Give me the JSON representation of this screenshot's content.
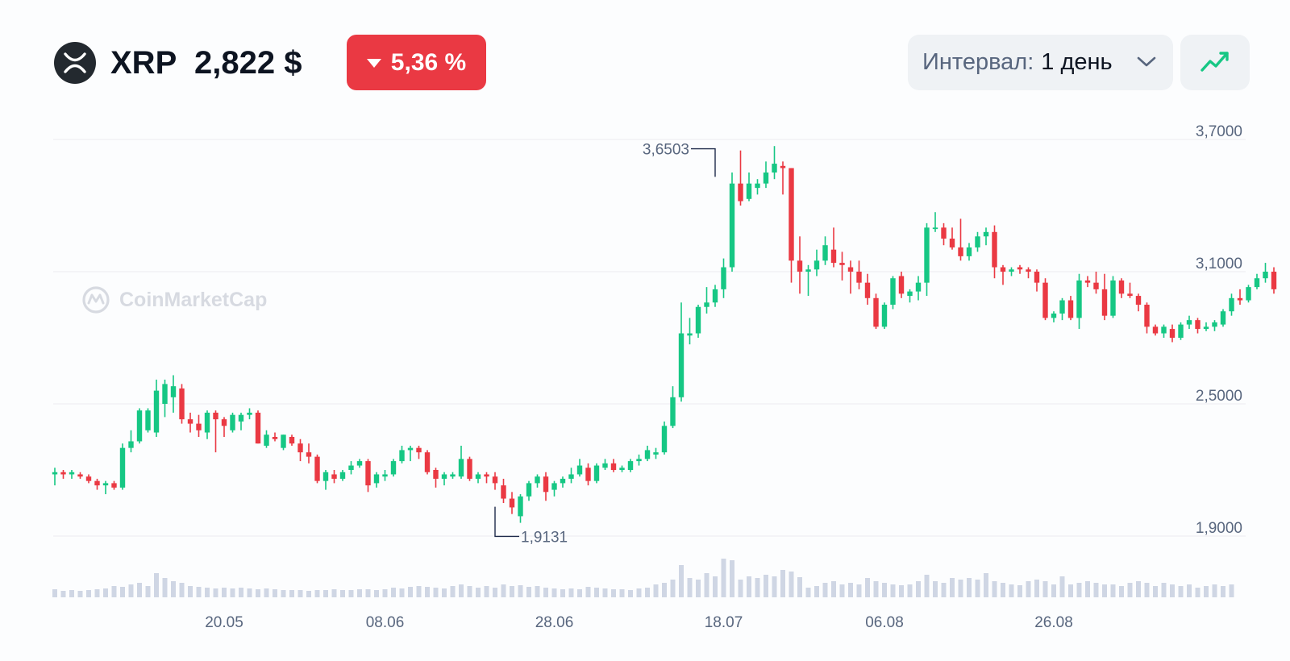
{
  "header": {
    "symbol": "XRP",
    "price": "2,822 $",
    "change": "5,36 %",
    "change_direction": "down",
    "coin_icon": "xrp-logo-icon",
    "interval_label": "Интервал:",
    "interval_value": "1 день",
    "chart_type_icon": "line-chart-icon"
  },
  "watermark": {
    "text": "CoinMarketCap"
  },
  "colors": {
    "up": "#16c784",
    "down": "#ea3943",
    "volume": "#cfd6e4",
    "grid": "#eef0f3",
    "axis_text": "#58667e",
    "badge_bg": "#ea3943",
    "button_bg": "#eff2f5"
  },
  "chart_data": {
    "type": "candlestick",
    "ylim": [
      1.85,
      3.75
    ],
    "y_ticks": [
      {
        "value": 3.7,
        "label": "3,7000"
      },
      {
        "value": 3.1,
        "label": "3,1000"
      },
      {
        "value": 2.5,
        "label": "2,5000"
      },
      {
        "value": 1.9,
        "label": "1,9000"
      }
    ],
    "x_ticks": [
      {
        "index": 20,
        "label": "20.05"
      },
      {
        "index": 39,
        "label": "08.06"
      },
      {
        "index": 59,
        "label": "28.06"
      },
      {
        "index": 79,
        "label": "18.07"
      },
      {
        "index": 98,
        "label": "06.08"
      },
      {
        "index": 118,
        "label": "26.08"
      }
    ],
    "annotations": [
      {
        "label": "3,6503",
        "value": 3.6503,
        "index": 78,
        "kind": "high"
      },
      {
        "label": "1,9131",
        "value": 1.9131,
        "index": 52,
        "kind": "low"
      }
    ],
    "candles": [
      [
        2.18,
        2.21,
        2.13,
        2.19
      ],
      [
        2.19,
        2.2,
        2.16,
        2.18
      ],
      [
        2.18,
        2.2,
        2.16,
        2.19
      ],
      [
        2.18,
        2.19,
        2.16,
        2.17
      ],
      [
        2.17,
        2.18,
        2.14,
        2.15
      ],
      [
        2.15,
        2.16,
        2.11,
        2.13
      ],
      [
        2.13,
        2.15,
        2.09,
        2.14
      ],
      [
        2.14,
        2.15,
        2.11,
        2.12
      ],
      [
        2.12,
        2.32,
        2.11,
        2.3
      ],
      [
        2.3,
        2.38,
        2.28,
        2.33
      ],
      [
        2.33,
        2.48,
        2.32,
        2.47
      ],
      [
        2.38,
        2.48,
        2.37,
        2.47
      ],
      [
        2.37,
        2.61,
        2.35,
        2.56
      ],
      [
        2.5,
        2.61,
        2.44,
        2.59
      ],
      [
        2.53,
        2.63,
        2.46,
        2.58
      ],
      [
        2.57,
        2.59,
        2.41,
        2.43
      ],
      [
        2.43,
        2.46,
        2.37,
        2.41
      ],
      [
        2.41,
        2.45,
        2.35,
        2.38
      ],
      [
        2.37,
        2.47,
        2.34,
        2.46
      ],
      [
        2.46,
        2.47,
        2.28,
        2.43
      ],
      [
        2.43,
        2.44,
        2.35,
        2.4
      ],
      [
        2.38,
        2.46,
        2.37,
        2.45
      ],
      [
        2.42,
        2.46,
        2.38,
        2.45
      ],
      [
        2.45,
        2.48,
        2.43,
        2.46
      ],
      [
        2.46,
        2.47,
        2.32,
        2.32
      ],
      [
        2.31,
        2.38,
        2.3,
        2.36
      ],
      [
        2.35,
        2.37,
        2.33,
        2.34
      ],
      [
        2.3,
        2.36,
        2.29,
        2.36
      ],
      [
        2.35,
        2.36,
        2.31,
        2.32
      ],
      [
        2.32,
        2.34,
        2.24,
        2.28
      ],
      [
        2.28,
        2.32,
        2.23,
        2.26
      ],
      [
        2.26,
        2.27,
        2.14,
        2.15
      ],
      [
        2.15,
        2.2,
        2.11,
        2.19
      ],
      [
        2.18,
        2.2,
        2.14,
        2.16
      ],
      [
        2.16,
        2.2,
        2.15,
        2.19
      ],
      [
        2.2,
        2.24,
        2.18,
        2.22
      ],
      [
        2.22,
        2.25,
        2.21,
        2.24
      ],
      [
        2.24,
        2.25,
        2.1,
        2.13
      ],
      [
        2.14,
        2.19,
        2.12,
        2.18
      ],
      [
        2.17,
        2.2,
        2.15,
        2.18
      ],
      [
        2.18,
        2.25,
        2.17,
        2.24
      ],
      [
        2.24,
        2.31,
        2.23,
        2.29
      ],
      [
        2.29,
        2.31,
        2.24,
        2.3
      ],
      [
        2.3,
        2.31,
        2.25,
        2.28
      ],
      [
        2.28,
        2.29,
        2.18,
        2.19
      ],
      [
        2.2,
        2.21,
        2.12,
        2.16
      ],
      [
        2.16,
        2.19,
        2.13,
        2.18
      ],
      [
        2.17,
        2.19,
        2.16,
        2.18
      ],
      [
        2.17,
        2.31,
        2.16,
        2.25
      ],
      [
        2.25,
        2.26,
        2.15,
        2.16
      ],
      [
        2.16,
        2.19,
        2.14,
        2.18
      ],
      [
        2.18,
        2.19,
        2.14,
        2.17
      ],
      [
        2.17,
        2.19,
        2.11,
        2.14
      ],
      [
        2.13,
        2.16,
        2.05,
        2.07
      ],
      [
        2.07,
        2.1,
        2.0,
        2.03
      ],
      [
        1.99,
        2.09,
        1.96,
        2.08
      ],
      [
        2.08,
        2.15,
        2.06,
        2.14
      ],
      [
        2.14,
        2.18,
        2.12,
        2.17
      ],
      [
        2.17,
        2.19,
        2.06,
        2.1
      ],
      [
        2.11,
        2.15,
        2.08,
        2.14
      ],
      [
        2.14,
        2.17,
        2.12,
        2.16
      ],
      [
        2.16,
        2.21,
        2.14,
        2.18
      ],
      [
        2.18,
        2.25,
        2.17,
        2.22
      ],
      [
        2.21,
        2.23,
        2.13,
        2.15
      ],
      [
        2.15,
        2.23,
        2.14,
        2.22
      ],
      [
        2.21,
        2.25,
        2.2,
        2.23
      ],
      [
        2.23,
        2.25,
        2.19,
        2.2
      ],
      [
        2.2,
        2.22,
        2.19,
        2.21
      ],
      [
        2.2,
        2.25,
        2.19,
        2.24
      ],
      [
        2.24,
        2.27,
        2.22,
        2.25
      ],
      [
        2.25,
        2.31,
        2.24,
        2.29
      ],
      [
        2.27,
        2.3,
        2.25,
        2.28
      ],
      [
        2.28,
        2.42,
        2.27,
        2.4
      ],
      [
        2.4,
        2.58,
        2.39,
        2.53
      ],
      [
        2.53,
        2.96,
        2.51,
        2.82
      ],
      [
        2.81,
        2.89,
        2.77,
        2.82
      ],
      [
        2.82,
        2.95,
        2.8,
        2.94
      ],
      [
        2.94,
        3.03,
        2.91,
        2.96
      ],
      [
        2.96,
        3.04,
        2.94,
        3.02
      ],
      [
        3.02,
        3.16,
        2.98,
        3.12
      ],
      [
        3.12,
        3.55,
        3.1,
        3.5
      ],
      [
        3.5,
        3.65,
        3.4,
        3.42
      ],
      [
        3.43,
        3.55,
        3.42,
        3.5
      ],
      [
        3.48,
        3.52,
        3.45,
        3.5
      ],
      [
        3.5,
        3.6,
        3.48,
        3.55
      ],
      [
        3.55,
        3.67,
        3.52,
        3.59
      ],
      [
        3.58,
        3.6,
        3.45,
        3.57
      ],
      [
        3.57,
        3.57,
        3.05,
        3.15
      ],
      [
        3.15,
        3.26,
        3.0,
        3.1
      ],
      [
        3.1,
        3.13,
        2.99,
        3.11
      ],
      [
        3.11,
        3.2,
        3.08,
        3.15
      ],
      [
        3.15,
        3.26,
        3.13,
        3.22
      ],
      [
        3.2,
        3.3,
        3.12,
        3.14
      ],
      [
        3.14,
        3.19,
        3.06,
        3.13
      ],
      [
        3.12,
        3.15,
        3.0,
        3.1
      ],
      [
        3.1,
        3.15,
        3.02,
        3.05
      ],
      [
        3.05,
        3.09,
        2.95,
        2.98
      ],
      [
        2.98,
        3.0,
        2.84,
        2.85
      ],
      [
        2.85,
        2.96,
        2.84,
        2.95
      ],
      [
        2.95,
        3.08,
        2.93,
        3.07
      ],
      [
        3.08,
        3.1,
        2.98,
        3.0
      ],
      [
        2.99,
        3.02,
        2.96,
        3.01
      ],
      [
        3.01,
        3.08,
        2.97,
        3.05
      ],
      [
        3.05,
        3.32,
        2.99,
        3.3
      ],
      [
        3.3,
        3.37,
        3.28,
        3.3
      ],
      [
        3.3,
        3.32,
        3.22,
        3.25
      ],
      [
        3.25,
        3.3,
        3.2,
        3.21
      ],
      [
        3.21,
        3.34,
        3.15,
        3.17
      ],
      [
        3.17,
        3.23,
        3.15,
        3.21
      ],
      [
        3.21,
        3.28,
        3.19,
        3.26
      ],
      [
        3.26,
        3.3,
        3.22,
        3.28
      ],
      [
        3.28,
        3.31,
        3.07,
        3.12
      ],
      [
        3.12,
        3.13,
        3.04,
        3.1
      ],
      [
        3.1,
        3.12,
        3.08,
        3.11
      ],
      [
        3.12,
        3.13,
        3.09,
        3.11
      ],
      [
        3.11,
        3.12,
        3.07,
        3.1
      ],
      [
        3.1,
        3.11,
        3.01,
        3.05
      ],
      [
        3.05,
        3.07,
        2.88,
        2.89
      ],
      [
        2.89,
        2.92,
        2.87,
        2.91
      ],
      [
        2.91,
        2.98,
        2.88,
        2.97
      ],
      [
        2.97,
        2.99,
        2.88,
        2.89
      ],
      [
        2.89,
        3.09,
        2.84,
        3.06
      ],
      [
        3.06,
        3.08,
        3.03,
        3.05
      ],
      [
        3.05,
        3.1,
        3.0,
        3.02
      ],
      [
        3.02,
        3.09,
        2.88,
        2.9
      ],
      [
        2.9,
        3.08,
        2.89,
        3.06
      ],
      [
        3.06,
        3.07,
        2.98,
        3.0
      ],
      [
        3.0,
        3.05,
        2.98,
        2.99
      ],
      [
        2.99,
        3.0,
        2.92,
        2.95
      ],
      [
        2.95,
        2.96,
        2.82,
        2.85
      ],
      [
        2.85,
        2.86,
        2.81,
        2.82
      ],
      [
        2.82,
        2.86,
        2.8,
        2.85
      ],
      [
        2.84,
        2.86,
        2.78,
        2.8
      ],
      [
        2.8,
        2.87,
        2.79,
        2.86
      ],
      [
        2.86,
        2.9,
        2.84,
        2.88
      ],
      [
        2.88,
        2.89,
        2.82,
        2.84
      ],
      [
        2.84,
        2.87,
        2.83,
        2.85
      ],
      [
        2.85,
        2.88,
        2.83,
        2.87
      ],
      [
        2.86,
        2.93,
        2.85,
        2.92
      ],
      [
        2.92,
        3.0,
        2.9,
        2.98
      ],
      [
        2.98,
        3.02,
        2.95,
        2.97
      ],
      [
        2.97,
        3.04,
        2.96,
        3.03
      ],
      [
        3.03,
        3.09,
        3.02,
        3.07
      ],
      [
        3.07,
        3.14,
        3.05,
        3.1
      ],
      [
        3.1,
        3.12,
        3.0,
        3.02
      ]
    ],
    "volumes": [
      10,
      8,
      9,
      8,
      9,
      10,
      11,
      14,
      13,
      16,
      18,
      14,
      30,
      24,
      20,
      18,
      14,
      13,
      12,
      11,
      12,
      11,
      12,
      11,
      10,
      11,
      10,
      9,
      9,
      9,
      8,
      9,
      9,
      10,
      9,
      9,
      10,
      10,
      9,
      10,
      12,
      11,
      13,
      14,
      13,
      12,
      11,
      14,
      16,
      14,
      12,
      14,
      12,
      16,
      14,
      15,
      13,
      14,
      12,
      11,
      10,
      11,
      10,
      13,
      12,
      11,
      10,
      10,
      9,
      11,
      12,
      16,
      18,
      22,
      40,
      24,
      22,
      30,
      26,
      48,
      46,
      22,
      26,
      24,
      28,
      26,
      34,
      32,
      25,
      12,
      14,
      18,
      20,
      16,
      18,
      16,
      24,
      20,
      18,
      16,
      15,
      16,
      20,
      28,
      20,
      18,
      24,
      22,
      24,
      22,
      30,
      20,
      18,
      16,
      15,
      20,
      22,
      20,
      16,
      26,
      16,
      18,
      20,
      18,
      16,
      16,
      14,
      18,
      20,
      18,
      14,
      18,
      16,
      14,
      16,
      12,
      14,
      16,
      14,
      16
    ]
  }
}
